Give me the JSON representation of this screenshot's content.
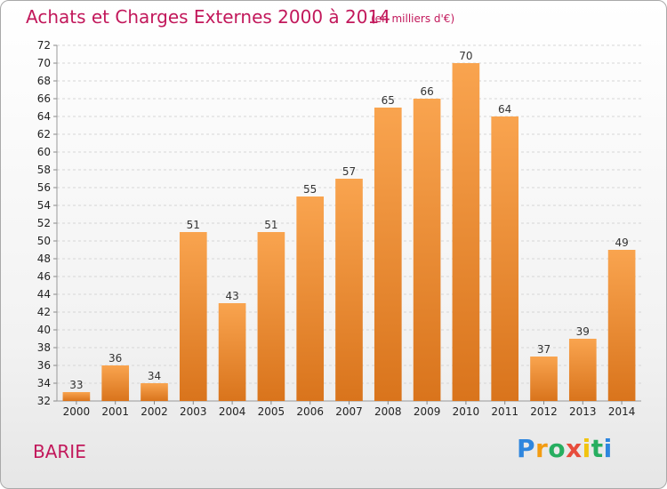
{
  "chart_data": {
    "type": "bar",
    "title": "Achats et Charges Externes 2000 à 2014",
    "subtitle": "(en milliers d'€)",
    "categories": [
      "2000",
      "2001",
      "2002",
      "2003",
      "2004",
      "2005",
      "2006",
      "2007",
      "2008",
      "2009",
      "2010",
      "2011",
      "2012",
      "2013",
      "2014"
    ],
    "values": [
      33,
      36,
      34,
      51,
      43,
      51,
      55,
      57,
      65,
      66,
      70,
      64,
      37,
      39,
      49
    ],
    "ylim": [
      32,
      72
    ],
    "ytick_step": 2,
    "grid": true,
    "xlabel": "",
    "ylabel": "",
    "colors": {
      "bar_light": "#f9a44f",
      "bar_dark": "#d9741c",
      "title": "#c2185b"
    }
  },
  "place_label": "BARIE",
  "logo": {
    "letters": [
      "P",
      "r",
      "o",
      "x",
      "i",
      "t",
      "i"
    ],
    "colors": [
      "#2e86de",
      "#f39c12",
      "#27ae60",
      "#e74c3c",
      "#f1c40f",
      "#27ae60",
      "#2e86de"
    ]
  }
}
